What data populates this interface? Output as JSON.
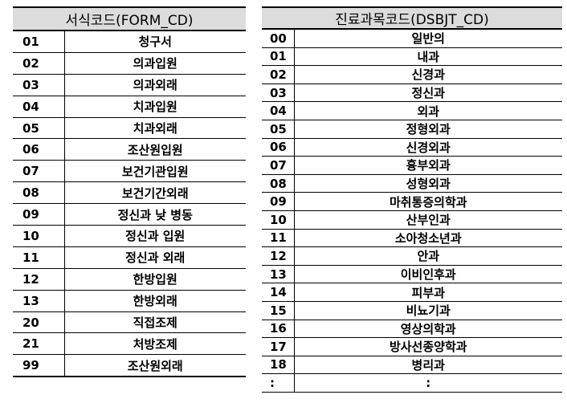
{
  "form_table": {
    "title": "서식코드(FORM_CD)",
    "rows": [
      {
        "code": "01",
        "name": "청구서"
      },
      {
        "code": "02",
        "name": "의과입원"
      },
      {
        "code": "03",
        "name": "의과외래"
      },
      {
        "code": "04",
        "name": "치과입원"
      },
      {
        "code": "05",
        "name": "치과외래"
      },
      {
        "code": "06",
        "name": "조산원입원"
      },
      {
        "code": "07",
        "name": "보건기관입원"
      },
      {
        "code": "08",
        "name": "보건기간외래"
      },
      {
        "code": "09",
        "name": "정신과 낮 병동"
      },
      {
        "code": "10",
        "name": "정신과 입원"
      },
      {
        "code": "11",
        "name": "정신과 외래"
      },
      {
        "code": "12",
        "name": "한방입원"
      },
      {
        "code": "13",
        "name": "한방외래"
      },
      {
        "code": "20",
        "name": "직접조제"
      },
      {
        "code": "21",
        "name": "처방조제"
      },
      {
        "code": "99",
        "name": "조산원외래"
      }
    ]
  },
  "dsbjt_table": {
    "title": "진료과목코드(DSBJT_CD)",
    "rows": [
      {
        "code": "00",
        "name": "일반의"
      },
      {
        "code": "01",
        "name": "내과"
      },
      {
        "code": "02",
        "name": "신경과"
      },
      {
        "code": "03",
        "name": "정신과"
      },
      {
        "code": "04",
        "name": "외과"
      },
      {
        "code": "05",
        "name": "정형외과"
      },
      {
        "code": "06",
        "name": "신경외과"
      },
      {
        "code": "07",
        "name": "흉부외과"
      },
      {
        "code": "08",
        "name": "성형외과"
      },
      {
        "code": "09",
        "name": "마취통증의학과"
      },
      {
        "code": "10",
        "name": "산부인과"
      },
      {
        "code": "11",
        "name": "소아청소년과"
      },
      {
        "code": "12",
        "name": "안과"
      },
      {
        "code": "13",
        "name": "이비인후과"
      },
      {
        "code": "14",
        "name": "피부과"
      },
      {
        "code": "15",
        "name": "비뇨기과"
      },
      {
        "code": "16",
        "name": "영상의학과"
      },
      {
        "code": "17",
        "name": "방사선종양학과"
      },
      {
        "code": "18",
        "name": "병리과"
      },
      {
        "code": ":",
        "name": ":"
      }
    ]
  }
}
